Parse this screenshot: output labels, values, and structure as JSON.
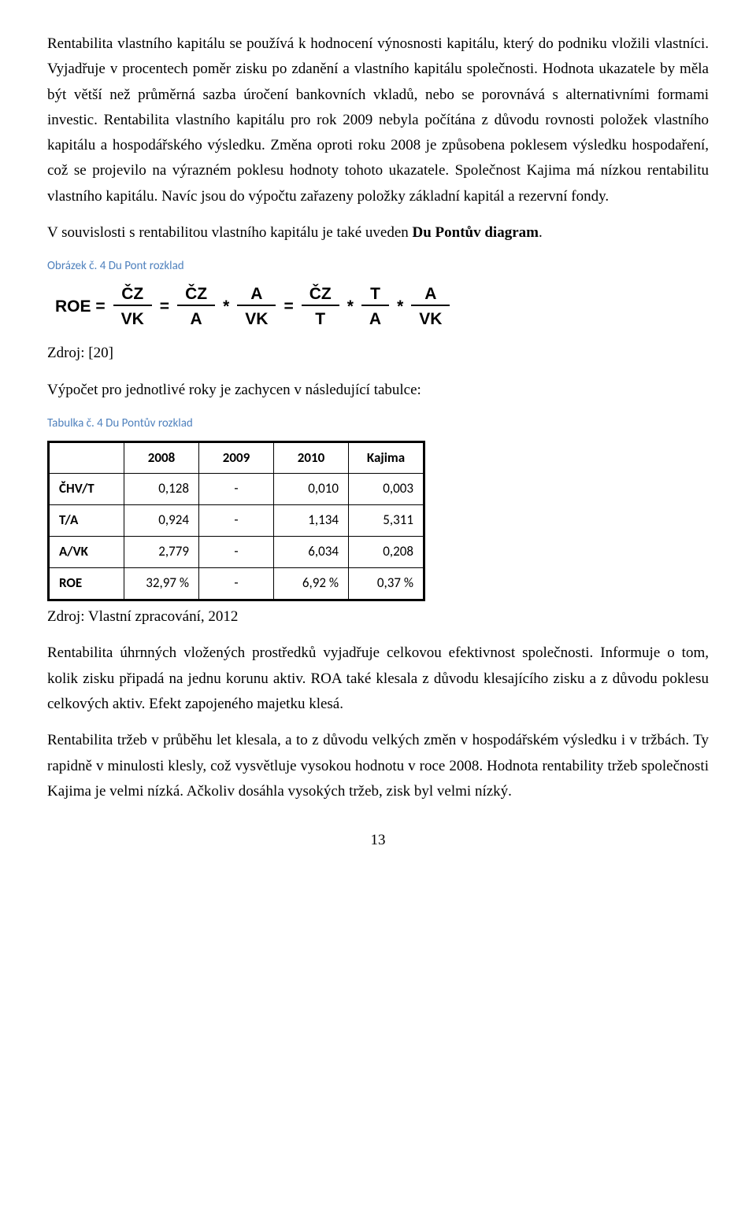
{
  "paragraphs": {
    "p1": "Rentabilita vlastního kapitálu se používá k hodnocení výnosnosti kapitálu, který do podniku vložili vlastníci. Vyjadřuje v procentech poměr zisku po zdanění a vlastního kapitálu společnosti. Hodnota ukazatele by měla být větší než průměrná sazba úročení bankovních vkladů, nebo se porovnává s alternativními formami investic. Rentabilita vlastního kapitálu pro rok 2009 nebyla počítána z důvodu rovnosti položek vlastního kapitálu a hospodářského výsledku. Změna oproti roku 2008 je způsobena poklesem výsledku hospodaření, což se projevilo na výrazném poklesu hodnoty tohoto ukazatele. Společnost Kajima má nízkou rentabilitu vlastního kapitálu. Navíc jsou do výpočtu zařazeny položky základní kapitál a rezervní fondy.",
    "p2_prefix": "V souvislosti s rentabilitou vlastního kapitálu je také uveden ",
    "p2_bold": "Du Pontův diagram",
    "p2_suffix": ".",
    "source1": "Zdroj: [20]",
    "p3": "Výpočet pro jednotlivé roky je zachycen v následující tabulce:",
    "source2": "Zdroj: Vlastní zpracování, 2012",
    "p4": "Rentabilita úhrnných vložených prostředků vyjadřuje celkovou efektivnost společnosti. Informuje o tom, kolik zisku připadá na jednu korunu aktiv. ROA také klesala z důvodu klesajícího zisku a z důvodu poklesu celkových aktiv. Efekt zapojeného majetku klesá.",
    "p5": "Rentabilita tržeb v průběhu let klesala, a to z důvodu velkých změn v hospodářském výsledku i v tržbách. Ty rapidně v minulosti klesly, což vysvětluje vysokou hodnotu v roce 2008. Hodnota rentability tržeb společnosti Kajima je velmi nízká. Ačkoliv dosáhla vysokých tržeb, zisk byl velmi nízký."
  },
  "captions": {
    "fig4": "Obrázek č. 4 Du Pont rozklad",
    "tab4": "Tabulka č. 4 Du Pontův rozklad"
  },
  "formula": {
    "lhs": "ROE =",
    "eq": "=",
    "star": "*",
    "cz": "ČZ",
    "vk": "VK",
    "a": "A",
    "t": "T"
  },
  "table": {
    "headers": [
      "",
      "2008",
      "2009",
      "2010",
      "Kajima"
    ],
    "rows": [
      [
        "ČHV/T",
        "0,128",
        "-",
        "0,010",
        "0,003"
      ],
      [
        "T/A",
        "0,924",
        "-",
        "1,134",
        "5,311"
      ],
      [
        "A/VK",
        "2,779",
        "-",
        "6,034",
        "0,208"
      ],
      [
        "ROE",
        "32,97 %",
        "-",
        "6,92 %",
        "0,37 %"
      ]
    ]
  },
  "page_number": "13",
  "colors": {
    "caption": "#4f81bd",
    "text": "#000000",
    "bg": "#ffffff"
  }
}
